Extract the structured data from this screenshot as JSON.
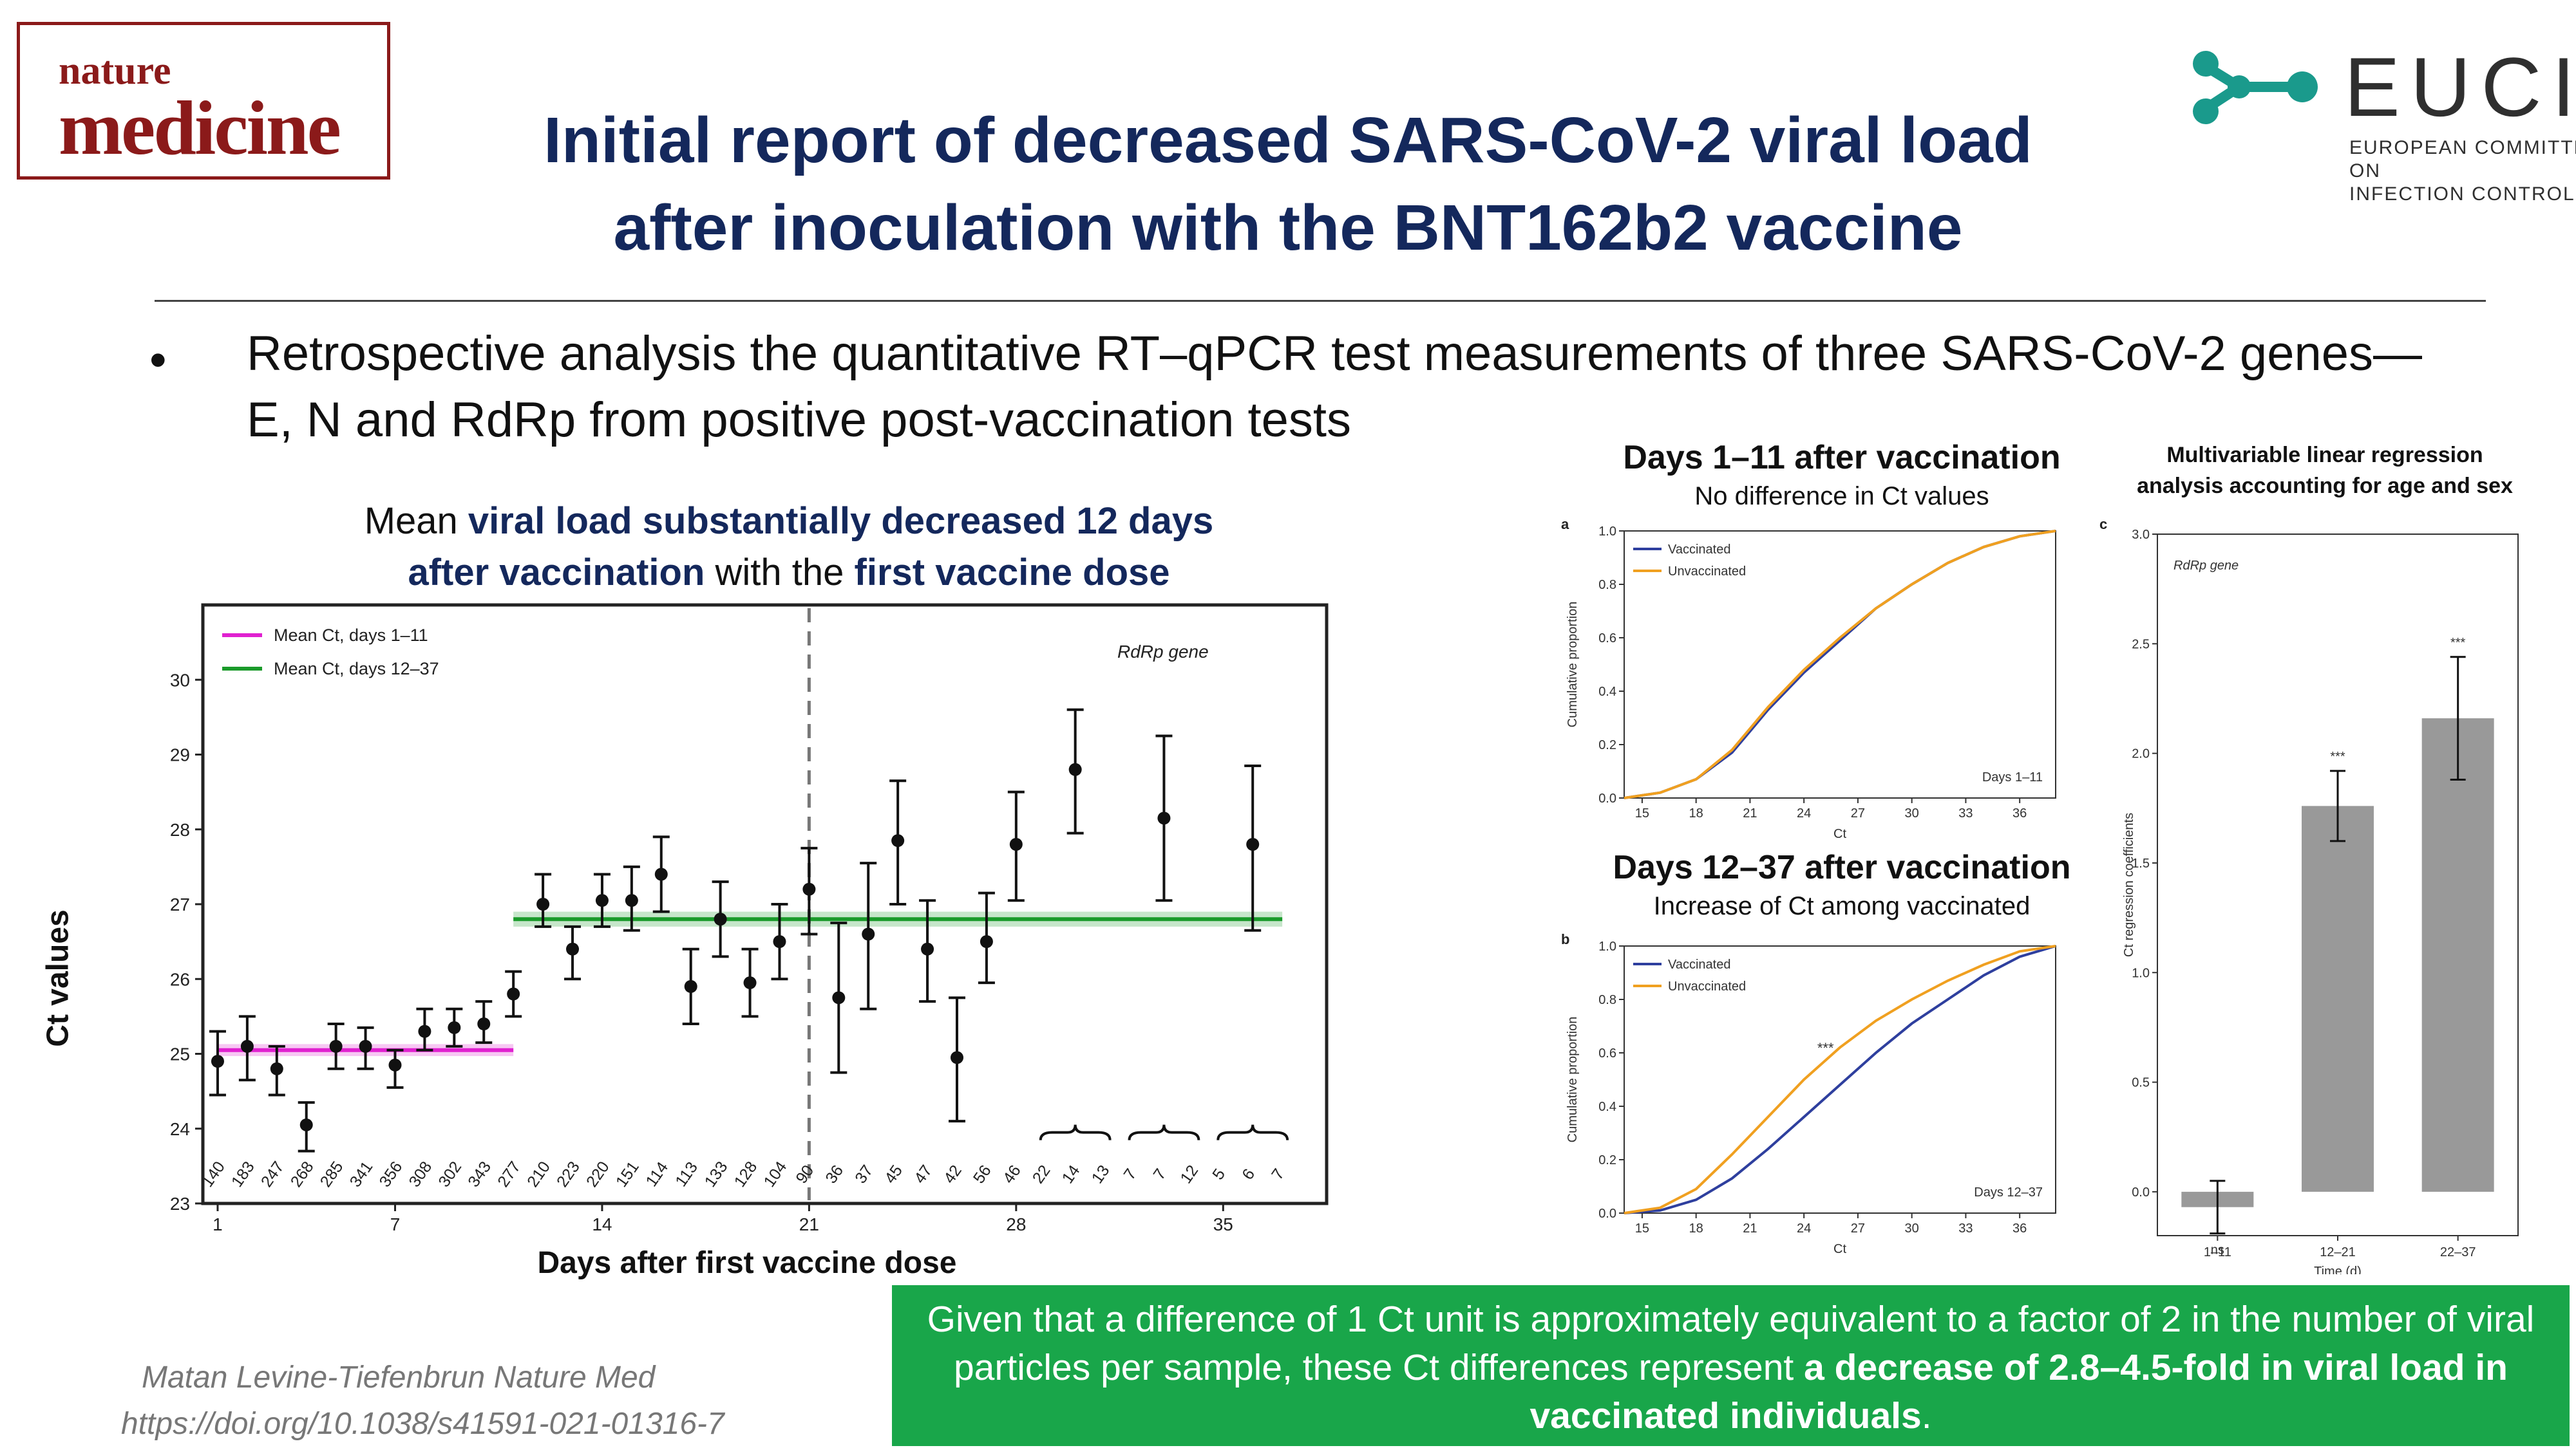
{
  "logo": {
    "line1": "nature",
    "line2": "medicine"
  },
  "title": {
    "line1": "Initial report of decreased SARS-CoV-2 viral load",
    "line2": "after inoculation with the BNT162b2 vaccine"
  },
  "eucic": {
    "name": "EUCIC",
    "sub_line1": "EUROPEAN COMMITTEE ON",
    "sub_line2": "INFECTION CONTROL",
    "icon": "molecule-icon",
    "mark_color": "#1a9a8c"
  },
  "bullet": {
    "marker": "•",
    "text": "Retrospective analysis the quantitative RT–qPCR test measurements of three SARS-CoV-2 genes—E, N and RdRp from positive post-vaccination tests"
  },
  "left_caption": {
    "p1": "Mean ",
    "b1": "viral load substantially decreased 12 days",
    "b2": "after vaccination",
    "p2": " with the ",
    "b3": "first vaccine dose"
  },
  "right_a": {
    "heading": "Days 1–11 after vaccination",
    "subheading": "No difference in Ct values"
  },
  "right_b": {
    "heading": "Days 12–37 after vaccination",
    "subheading": "Increase of Ct among vaccinated"
  },
  "right_c": {
    "heading_line1": "Multivariable linear regression",
    "heading_line2": "analysis accounting for age and sex"
  },
  "green_box": {
    "text1": "Given that a difference of 1 Ct unit is approximately equivalent to a factor of 2 in the number of viral particles per sample, these Ct differences represent ",
    "bold": "a decrease of 2.8–4.5-fold in viral load in vaccinated individuals",
    "text2": "."
  },
  "citation": {
    "line1": "Matan Levine-Tiefenbrun Nature Med",
    "line2": "https://doi.org/10.1038/s41591-021-01316-7"
  },
  "colors": {
    "title": "#14285c",
    "mean_early": "#e020d0",
    "mean_late": "#1a9a2a",
    "vaccinated": "#2e3f9e",
    "unvaccinated": "#f0a020",
    "bar": "#999999",
    "green_box": "#19a64a"
  },
  "chart_data": [
    {
      "type": "scatter",
      "title": "",
      "annotation": "RdRp gene",
      "xlabel": "Days after first vaccine dose",
      "ylabel": "Ct values",
      "xlim": [
        0.5,
        38.5
      ],
      "ylim": [
        23,
        31
      ],
      "xticks": [
        1,
        7,
        14,
        21,
        28,
        35
      ],
      "yticks": [
        23,
        24,
        25,
        26,
        27,
        28,
        29,
        30
      ],
      "vline_x": 21,
      "legend": [
        "Mean Ct, days 1–11",
        "Mean Ct, days 12–37"
      ],
      "legend_placement": "top-left",
      "mean_lines": [
        {
          "name": "Mean Ct, days 1–11",
          "x": [
            1,
            11
          ],
          "y": 25.05,
          "ci": [
            24.97,
            25.13
          ]
        },
        {
          "name": "Mean Ct, days 12–37",
          "x": [
            11,
            37
          ],
          "y": 26.8,
          "ci": [
            26.7,
            26.9
          ]
        }
      ],
      "points": [
        {
          "x": 1,
          "y": 24.9,
          "lo": 24.45,
          "hi": 25.3,
          "n": "140"
        },
        {
          "x": 2,
          "y": 25.1,
          "lo": 24.65,
          "hi": 25.5,
          "n": "183"
        },
        {
          "x": 3,
          "y": 24.8,
          "lo": 24.45,
          "hi": 25.1,
          "n": "247"
        },
        {
          "x": 4,
          "y": 24.05,
          "lo": 23.7,
          "hi": 24.35,
          "n": "268"
        },
        {
          "x": 5,
          "y": 25.1,
          "lo": 24.8,
          "hi": 25.4,
          "n": "285"
        },
        {
          "x": 6,
          "y": 25.1,
          "lo": 24.8,
          "hi": 25.35,
          "n": "341"
        },
        {
          "x": 7,
          "y": 24.85,
          "lo": 24.55,
          "hi": 25.05,
          "n": "356"
        },
        {
          "x": 8,
          "y": 25.3,
          "lo": 25.05,
          "hi": 25.6,
          "n": "308"
        },
        {
          "x": 9,
          "y": 25.35,
          "lo": 25.1,
          "hi": 25.6,
          "n": "302"
        },
        {
          "x": 10,
          "y": 25.4,
          "lo": 25.15,
          "hi": 25.7,
          "n": "343"
        },
        {
          "x": 11,
          "y": 25.8,
          "lo": 25.5,
          "hi": 26.1,
          "n": "277"
        },
        {
          "x": 12,
          "y": 27.0,
          "lo": 26.7,
          "hi": 27.4,
          "n": "210"
        },
        {
          "x": 13,
          "y": 26.4,
          "lo": 26.0,
          "hi": 26.7,
          "n": "223"
        },
        {
          "x": 14,
          "y": 27.05,
          "lo": 26.7,
          "hi": 27.4,
          "n": "220"
        },
        {
          "x": 15,
          "y": 27.05,
          "lo": 26.65,
          "hi": 27.5,
          "n": "151"
        },
        {
          "x": 16,
          "y": 27.4,
          "lo": 26.9,
          "hi": 27.9,
          "n": "114"
        },
        {
          "x": 17,
          "y": 25.9,
          "lo": 25.4,
          "hi": 26.4,
          "n": "113"
        },
        {
          "x": 18,
          "y": 26.8,
          "lo": 26.3,
          "hi": 27.3,
          "n": "133"
        },
        {
          "x": 19,
          "y": 25.95,
          "lo": 25.5,
          "hi": 26.4,
          "n": "128"
        },
        {
          "x": 20,
          "y": 26.5,
          "lo": 26.0,
          "hi": 27.0,
          "n": "104"
        },
        {
          "x": 21,
          "y": 27.2,
          "lo": 26.6,
          "hi": 27.75,
          "n": "90"
        },
        {
          "x": 22,
          "y": 25.75,
          "lo": 24.75,
          "hi": 26.75,
          "n": "36"
        },
        {
          "x": 23,
          "y": 26.6,
          "lo": 25.6,
          "hi": 27.55,
          "n": "37"
        },
        {
          "x": 24,
          "y": 27.85,
          "lo": 27.0,
          "hi": 28.65,
          "n": "45"
        },
        {
          "x": 25,
          "y": 26.4,
          "lo": 25.7,
          "hi": 27.05,
          "n": "47"
        },
        {
          "x": 26,
          "y": 24.95,
          "lo": 24.1,
          "hi": 25.75,
          "n": "42"
        },
        {
          "x": 27,
          "y": 26.5,
          "lo": 25.95,
          "hi": 27.15,
          "n": "56"
        },
        {
          "x": 28,
          "y": 27.8,
          "lo": 27.05,
          "hi": 28.5,
          "n": "46"
        },
        {
          "x": 30,
          "y": 28.8,
          "lo": 27.95,
          "hi": 29.6,
          "n": "22"
        },
        {
          "x": 33,
          "y": 28.15,
          "lo": 27.05,
          "hi": 29.25,
          "n": "14"
        },
        {
          "x": 36,
          "y": 27.8,
          "lo": 26.65,
          "hi": 28.85,
          "n": "13"
        }
      ],
      "extra_counts": [
        {
          "x": 29,
          "n": "22"
        },
        {
          "x": 30,
          "n": "14"
        },
        {
          "x": 31,
          "n": "13"
        },
        {
          "x": 32,
          "n": "7"
        },
        {
          "x": 33,
          "n": "7"
        },
        {
          "x": 34,
          "n": "12"
        },
        {
          "x": 35,
          "n": "5"
        },
        {
          "x": 36,
          "n": "6"
        },
        {
          "x": 37,
          "n": "7"
        }
      ],
      "braces": [
        [
          29,
          31
        ],
        [
          32,
          34
        ],
        [
          35,
          37
        ]
      ]
    },
    {
      "type": "line",
      "panel_label": "a",
      "annotation": "Days 1–11",
      "xlabel": "Ct",
      "ylabel": "Cumulative proportion",
      "xlim": [
        14,
        38
      ],
      "ylim": [
        0,
        1
      ],
      "xticks": [
        15,
        18,
        21,
        24,
        27,
        30,
        33,
        36
      ],
      "yticks": [
        0.0,
        0.2,
        0.4,
        0.6,
        0.8,
        1.0
      ],
      "legend_placement": "top-left",
      "series": [
        {
          "name": "Vaccinated",
          "x": [
            14,
            16,
            18,
            20,
            21,
            22,
            24,
            26,
            28,
            30,
            32,
            34,
            36,
            38
          ],
          "y": [
            0.0,
            0.02,
            0.07,
            0.17,
            0.25,
            0.33,
            0.47,
            0.59,
            0.71,
            0.8,
            0.88,
            0.94,
            0.98,
            1.0
          ]
        },
        {
          "name": "Unvaccinated",
          "x": [
            14,
            16,
            18,
            20,
            21,
            22,
            24,
            26,
            28,
            30,
            32,
            34,
            36,
            38
          ],
          "y": [
            0.0,
            0.02,
            0.07,
            0.18,
            0.26,
            0.34,
            0.48,
            0.6,
            0.71,
            0.8,
            0.88,
            0.94,
            0.98,
            1.0
          ]
        }
      ]
    },
    {
      "type": "line",
      "panel_label": "b",
      "annotation": "Days 12–37",
      "marker": "***",
      "xlabel": "Ct",
      "ylabel": "Cumulative proportion",
      "xlim": [
        14,
        38
      ],
      "ylim": [
        0,
        1
      ],
      "xticks": [
        15,
        18,
        21,
        24,
        27,
        30,
        33,
        36
      ],
      "yticks": [
        0.0,
        0.2,
        0.4,
        0.6,
        0.8,
        1.0
      ],
      "legend_placement": "top-left",
      "series": [
        {
          "name": "Vaccinated",
          "x": [
            14,
            16,
            18,
            20,
            22,
            24,
            26,
            28,
            30,
            32,
            34,
            36,
            38
          ],
          "y": [
            0.0,
            0.01,
            0.05,
            0.13,
            0.24,
            0.36,
            0.48,
            0.6,
            0.71,
            0.8,
            0.89,
            0.96,
            1.0
          ]
        },
        {
          "name": "Unvaccinated",
          "x": [
            14,
            16,
            18,
            20,
            22,
            24,
            26,
            28,
            30,
            32,
            34,
            36,
            38
          ],
          "y": [
            0.0,
            0.02,
            0.09,
            0.22,
            0.36,
            0.5,
            0.62,
            0.72,
            0.8,
            0.87,
            0.93,
            0.98,
            1.0
          ]
        }
      ]
    },
    {
      "type": "bar",
      "panel_label": "c",
      "annotation": "RdRp gene",
      "xlabel": "Time (d)",
      "ylabel": "Ct regression coefficients",
      "ylim": [
        -0.2,
        3.0
      ],
      "yticks": [
        0.0,
        0.5,
        1.0,
        1.5,
        2.0,
        2.5,
        3.0
      ],
      "categories": [
        "1–11",
        "12–21",
        "22–37"
      ],
      "values": [
        -0.07,
        1.76,
        2.16
      ],
      "lo": [
        -0.19,
        1.6,
        1.88
      ],
      "hi": [
        0.05,
        1.92,
        2.44
      ],
      "significance": [
        "ns",
        "***",
        "***"
      ]
    }
  ]
}
